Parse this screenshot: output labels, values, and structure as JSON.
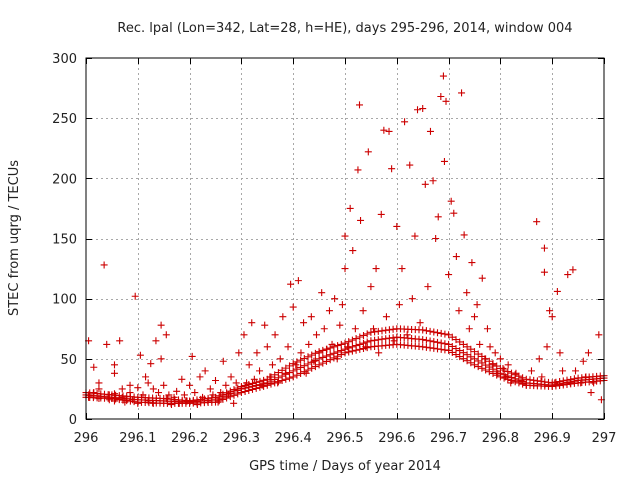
{
  "chart_data": {
    "type": "scatter",
    "title": "Rec. lpal (Lon=342, Lat=28, h=HE), days 295-296, 2014, window 004",
    "xlabel": "GPS time / Days of year 2014",
    "ylabel": "STEC from uqrg / TECUs",
    "xlim": [
      296,
      297
    ],
    "ylim": [
      0,
      300
    ],
    "x_ticks": [
      296,
      296.1,
      296.2,
      296.3,
      296.4,
      296.5,
      296.6,
      296.7,
      296.8,
      296.9,
      297
    ],
    "x_tick_labels": [
      "296",
      "296.1",
      "296.2",
      "296.3",
      "296.4",
      "296.5",
      "296.6",
      "296.7",
      "296.8",
      "296.9",
      "297"
    ],
    "y_ticks": [
      0,
      50,
      100,
      150,
      200,
      250,
      300
    ],
    "y_tick_labels": [
      "0",
      "50",
      "100",
      "150",
      "200",
      "250",
      "300"
    ],
    "grid": true,
    "marker": "+",
    "color": "#cc0000",
    "series": [
      {
        "points": [
          [
            296.005,
            65
          ],
          [
            296.005,
            20
          ],
          [
            296.005,
            18
          ],
          [
            296.015,
            43
          ],
          [
            296.015,
            22
          ],
          [
            296.015,
            19
          ],
          [
            296.025,
            30
          ],
          [
            296.025,
            25
          ],
          [
            296.025,
            17
          ],
          [
            296.035,
            128
          ],
          [
            296.04,
            62
          ],
          [
            296.045,
            20
          ],
          [
            296.045,
            16
          ],
          [
            296.055,
            45
          ],
          [
            296.055,
            38
          ],
          [
            296.055,
            21
          ],
          [
            296.055,
            15
          ],
          [
            296.065,
            65
          ],
          [
            296.07,
            25
          ],
          [
            296.07,
            18
          ],
          [
            296.075,
            14
          ],
          [
            296.085,
            28
          ],
          [
            296.085,
            22
          ],
          [
            296.09,
            16
          ],
          [
            296.095,
            102
          ],
          [
            296.1,
            26
          ],
          [
            296.1,
            13
          ],
          [
            296.105,
            53
          ],
          [
            296.11,
            20
          ],
          [
            296.115,
            35
          ],
          [
            296.12,
            30
          ],
          [
            296.12,
            15
          ],
          [
            296.125,
            46
          ],
          [
            296.13,
            25
          ],
          [
            296.13,
            13
          ],
          [
            296.135,
            65
          ],
          [
            296.14,
            22
          ],
          [
            296.145,
            78
          ],
          [
            296.145,
            50
          ],
          [
            296.15,
            28
          ],
          [
            296.155,
            70
          ],
          [
            296.155,
            17
          ],
          [
            296.16,
            20
          ],
          [
            296.165,
            12
          ],
          [
            296.17,
            18
          ],
          [
            296.175,
            23
          ],
          [
            296.18,
            13
          ],
          [
            296.185,
            33
          ],
          [
            296.19,
            20
          ],
          [
            296.195,
            15
          ],
          [
            296.2,
            28
          ],
          [
            296.205,
            52
          ],
          [
            296.21,
            22
          ],
          [
            296.215,
            12
          ],
          [
            296.22,
            35
          ],
          [
            296.225,
            18
          ],
          [
            296.23,
            40
          ],
          [
            296.235,
            15
          ],
          [
            296.24,
            25
          ],
          [
            296.245,
            20
          ],
          [
            296.25,
            32
          ],
          [
            296.255,
            14
          ],
          [
            296.26,
            22
          ],
          [
            296.265,
            48
          ],
          [
            296.27,
            28
          ],
          [
            296.275,
            20
          ],
          [
            296.28,
            35
          ],
          [
            296.285,
            13
          ],
          [
            296.29,
            30
          ],
          [
            296.295,
            55
          ],
          [
            296.3,
            25
          ],
          [
            296.305,
            70
          ],
          [
            296.31,
            30
          ],
          [
            296.315,
            45
          ],
          [
            296.32,
            80
          ],
          [
            296.325,
            33
          ],
          [
            296.33,
            55
          ],
          [
            296.335,
            40
          ],
          [
            296.34,
            28
          ],
          [
            296.345,
            78
          ],
          [
            296.35,
            60
          ],
          [
            296.355,
            35
          ],
          [
            296.36,
            45
          ],
          [
            296.365,
            70
          ],
          [
            296.37,
            30
          ],
          [
            296.375,
            50
          ],
          [
            296.38,
            85
          ],
          [
            296.385,
            38
          ],
          [
            296.39,
            60
          ],
          [
            296.395,
            112
          ],
          [
            296.4,
            93
          ],
          [
            296.405,
            45
          ],
          [
            296.41,
            115
          ],
          [
            296.415,
            55
          ],
          [
            296.42,
            80
          ],
          [
            296.425,
            38
          ],
          [
            296.43,
            62
          ],
          [
            296.435,
            85
          ],
          [
            296.44,
            48
          ],
          [
            296.445,
            70
          ],
          [
            296.45,
            55
          ],
          [
            296.455,
            105
          ],
          [
            296.46,
            75
          ],
          [
            296.465,
            58
          ],
          [
            296.47,
            90
          ],
          [
            296.475,
            62
          ],
          [
            296.48,
            100
          ],
          [
            296.485,
            50
          ],
          [
            296.49,
            78
          ],
          [
            296.495,
            95
          ],
          [
            296.5,
            152
          ],
          [
            296.5,
            125
          ],
          [
            296.505,
            60
          ],
          [
            296.51,
            175
          ],
          [
            296.515,
            140
          ],
          [
            296.52,
            75
          ],
          [
            296.525,
            207
          ],
          [
            296.528,
            261
          ],
          [
            296.53,
            165
          ],
          [
            296.535,
            90
          ],
          [
            296.54,
            60
          ],
          [
            296.545,
            222
          ],
          [
            296.55,
            110
          ],
          [
            296.555,
            75
          ],
          [
            296.56,
            125
          ],
          [
            296.565,
            55
          ],
          [
            296.57,
            170
          ],
          [
            296.575,
            240
          ],
          [
            296.58,
            85
          ],
          [
            296.585,
            239
          ],
          [
            296.59,
            208
          ],
          [
            296.595,
            65
          ],
          [
            296.6,
            160
          ],
          [
            296.605,
            95
          ],
          [
            296.61,
            125
          ],
          [
            296.615,
            247
          ],
          [
            296.62,
            70
          ],
          [
            296.625,
            211
          ],
          [
            296.63,
            100
          ],
          [
            296.635,
            152
          ],
          [
            296.64,
            257
          ],
          [
            296.645,
            80
          ],
          [
            296.65,
            258
          ],
          [
            296.655,
            195
          ],
          [
            296.66,
            110
          ],
          [
            296.665,
            239
          ],
          [
            296.67,
            198
          ],
          [
            296.675,
            150
          ],
          [
            296.68,
            168
          ],
          [
            296.685,
            268
          ],
          [
            296.69,
            285
          ],
          [
            296.692,
            214
          ],
          [
            296.695,
            264
          ],
          [
            296.7,
            120
          ],
          [
            296.705,
            181
          ],
          [
            296.71,
            171
          ],
          [
            296.715,
            135
          ],
          [
            296.72,
            90
          ],
          [
            296.725,
            271
          ],
          [
            296.73,
            153
          ],
          [
            296.735,
            105
          ],
          [
            296.74,
            75
          ],
          [
            296.745,
            130
          ],
          [
            296.75,
            85
          ],
          [
            296.755,
            95
          ],
          [
            296.76,
            62
          ],
          [
            296.765,
            117
          ],
          [
            296.77,
            50
          ],
          [
            296.775,
            75
          ],
          [
            296.78,
            60
          ],
          [
            296.785,
            45
          ],
          [
            296.79,
            55
          ],
          [
            296.795,
            38
          ],
          [
            296.8,
            50
          ],
          [
            296.805,
            42
          ],
          [
            296.81,
            35
          ],
          [
            296.815,
            45
          ],
          [
            296.82,
            30
          ],
          [
            296.83,
            38
          ],
          [
            296.84,
            32
          ],
          [
            296.85,
            28
          ],
          [
            296.86,
            40
          ],
          [
            296.87,
            164
          ],
          [
            296.875,
            50
          ],
          [
            296.88,
            35
          ],
          [
            296.885,
            142
          ],
          [
            296.885,
            122
          ],
          [
            296.89,
            60
          ],
          [
            296.895,
            90
          ],
          [
            296.9,
            85
          ],
          [
            296.905,
            30
          ],
          [
            296.91,
            106
          ],
          [
            296.915,
            55
          ],
          [
            296.92,
            40
          ],
          [
            296.93,
            120
          ],
          [
            296.935,
            30
          ],
          [
            296.94,
            124
          ],
          [
            296.945,
            40
          ],
          [
            296.955,
            30
          ],
          [
            296.96,
            48
          ],
          [
            296.965,
            35
          ],
          [
            296.97,
            55
          ],
          [
            296.975,
            22
          ],
          [
            296.98,
            30
          ],
          [
            296.99,
            70
          ],
          [
            296.995,
            16
          ]
        ]
      }
    ],
    "baseline_tracks": [
      {
        "x": [
          296.0,
          296.05,
          296.1,
          296.15,
          296.2,
          296.25,
          296.3,
          296.35,
          296.4,
          296.45,
          296.5,
          296.55,
          296.6,
          296.65,
          296.7,
          296.75,
          296.8,
          296.85,
          296.9,
          296.95,
          297.0
        ],
        "y": [
          18,
          17,
          14,
          13,
          13,
          14,
          22,
          28,
          35,
          45,
          55,
          60,
          62,
          60,
          57,
          45,
          35,
          28,
          27,
          30,
          32
        ]
      },
      {
        "x": [
          296.0,
          296.05,
          296.1,
          296.15,
          296.2,
          296.25,
          296.3,
          296.35,
          296.4,
          296.45,
          296.5,
          296.55,
          296.6,
          296.65,
          296.7,
          296.75,
          296.8,
          296.85,
          296.9,
          296.95,
          297.0
        ],
        "y": [
          20,
          18,
          16,
          15,
          14,
          16,
          25,
          30,
          40,
          50,
          58,
          65,
          68,
          66,
          62,
          50,
          38,
          30,
          28,
          32,
          34
        ]
      },
      {
        "x": [
          296.0,
          296.05,
          296.1,
          296.15,
          296.2,
          296.25,
          296.3,
          296.35,
          296.4,
          296.45,
          296.5,
          296.55,
          296.6,
          296.65,
          296.7,
          296.75,
          296.8,
          296.85,
          296.9,
          296.95,
          297.0
        ],
        "y": [
          22,
          20,
          18,
          17,
          15,
          18,
          27,
          33,
          46,
          56,
          63,
          72,
          75,
          74,
          70,
          56,
          42,
          33,
          30,
          34,
          36
        ]
      }
    ]
  }
}
